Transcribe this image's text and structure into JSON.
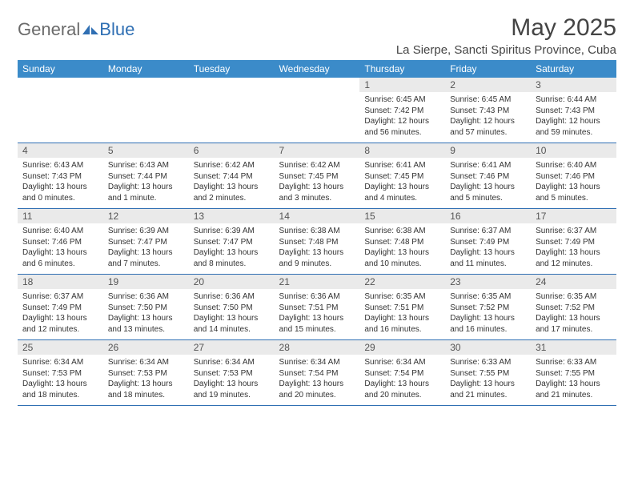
{
  "brand": {
    "part1": "General",
    "part2": "Blue"
  },
  "title": "May 2025",
  "location": "La Sierpe, Sancti Spiritus Province, Cuba",
  "colors": {
    "header_bg": "#3b8bc9",
    "header_text": "#ffffff",
    "daynum_bg": "#eaeaea",
    "border": "#2f6fb3",
    "brand_gray": "#6a6a6a",
    "brand_blue": "#2f6fb3"
  },
  "weekdays": [
    "Sunday",
    "Monday",
    "Tuesday",
    "Wednesday",
    "Thursday",
    "Friday",
    "Saturday"
  ],
  "weeks": [
    [
      null,
      null,
      null,
      null,
      {
        "n": "1",
        "sr": "6:45 AM",
        "ss": "7:42 PM",
        "dl": "12 hours and 56 minutes."
      },
      {
        "n": "2",
        "sr": "6:45 AM",
        "ss": "7:43 PM",
        "dl": "12 hours and 57 minutes."
      },
      {
        "n": "3",
        "sr": "6:44 AM",
        "ss": "7:43 PM",
        "dl": "12 hours and 59 minutes."
      }
    ],
    [
      {
        "n": "4",
        "sr": "6:43 AM",
        "ss": "7:43 PM",
        "dl": "13 hours and 0 minutes."
      },
      {
        "n": "5",
        "sr": "6:43 AM",
        "ss": "7:44 PM",
        "dl": "13 hours and 1 minute."
      },
      {
        "n": "6",
        "sr": "6:42 AM",
        "ss": "7:44 PM",
        "dl": "13 hours and 2 minutes."
      },
      {
        "n": "7",
        "sr": "6:42 AM",
        "ss": "7:45 PM",
        "dl": "13 hours and 3 minutes."
      },
      {
        "n": "8",
        "sr": "6:41 AM",
        "ss": "7:45 PM",
        "dl": "13 hours and 4 minutes."
      },
      {
        "n": "9",
        "sr": "6:41 AM",
        "ss": "7:46 PM",
        "dl": "13 hours and 5 minutes."
      },
      {
        "n": "10",
        "sr": "6:40 AM",
        "ss": "7:46 PM",
        "dl": "13 hours and 5 minutes."
      }
    ],
    [
      {
        "n": "11",
        "sr": "6:40 AM",
        "ss": "7:46 PM",
        "dl": "13 hours and 6 minutes."
      },
      {
        "n": "12",
        "sr": "6:39 AM",
        "ss": "7:47 PM",
        "dl": "13 hours and 7 minutes."
      },
      {
        "n": "13",
        "sr": "6:39 AM",
        "ss": "7:47 PM",
        "dl": "13 hours and 8 minutes."
      },
      {
        "n": "14",
        "sr": "6:38 AM",
        "ss": "7:48 PM",
        "dl": "13 hours and 9 minutes."
      },
      {
        "n": "15",
        "sr": "6:38 AM",
        "ss": "7:48 PM",
        "dl": "13 hours and 10 minutes."
      },
      {
        "n": "16",
        "sr": "6:37 AM",
        "ss": "7:49 PM",
        "dl": "13 hours and 11 minutes."
      },
      {
        "n": "17",
        "sr": "6:37 AM",
        "ss": "7:49 PM",
        "dl": "13 hours and 12 minutes."
      }
    ],
    [
      {
        "n": "18",
        "sr": "6:37 AM",
        "ss": "7:49 PM",
        "dl": "13 hours and 12 minutes."
      },
      {
        "n": "19",
        "sr": "6:36 AM",
        "ss": "7:50 PM",
        "dl": "13 hours and 13 minutes."
      },
      {
        "n": "20",
        "sr": "6:36 AM",
        "ss": "7:50 PM",
        "dl": "13 hours and 14 minutes."
      },
      {
        "n": "21",
        "sr": "6:36 AM",
        "ss": "7:51 PM",
        "dl": "13 hours and 15 minutes."
      },
      {
        "n": "22",
        "sr": "6:35 AM",
        "ss": "7:51 PM",
        "dl": "13 hours and 16 minutes."
      },
      {
        "n": "23",
        "sr": "6:35 AM",
        "ss": "7:52 PM",
        "dl": "13 hours and 16 minutes."
      },
      {
        "n": "24",
        "sr": "6:35 AM",
        "ss": "7:52 PM",
        "dl": "13 hours and 17 minutes."
      }
    ],
    [
      {
        "n": "25",
        "sr": "6:34 AM",
        "ss": "7:53 PM",
        "dl": "13 hours and 18 minutes."
      },
      {
        "n": "26",
        "sr": "6:34 AM",
        "ss": "7:53 PM",
        "dl": "13 hours and 18 minutes."
      },
      {
        "n": "27",
        "sr": "6:34 AM",
        "ss": "7:53 PM",
        "dl": "13 hours and 19 minutes."
      },
      {
        "n": "28",
        "sr": "6:34 AM",
        "ss": "7:54 PM",
        "dl": "13 hours and 20 minutes."
      },
      {
        "n": "29",
        "sr": "6:34 AM",
        "ss": "7:54 PM",
        "dl": "13 hours and 20 minutes."
      },
      {
        "n": "30",
        "sr": "6:33 AM",
        "ss": "7:55 PM",
        "dl": "13 hours and 21 minutes."
      },
      {
        "n": "31",
        "sr": "6:33 AM",
        "ss": "7:55 PM",
        "dl": "13 hours and 21 minutes."
      }
    ]
  ],
  "labels": {
    "sunrise": "Sunrise:",
    "sunset": "Sunset:",
    "daylight": "Daylight:"
  }
}
